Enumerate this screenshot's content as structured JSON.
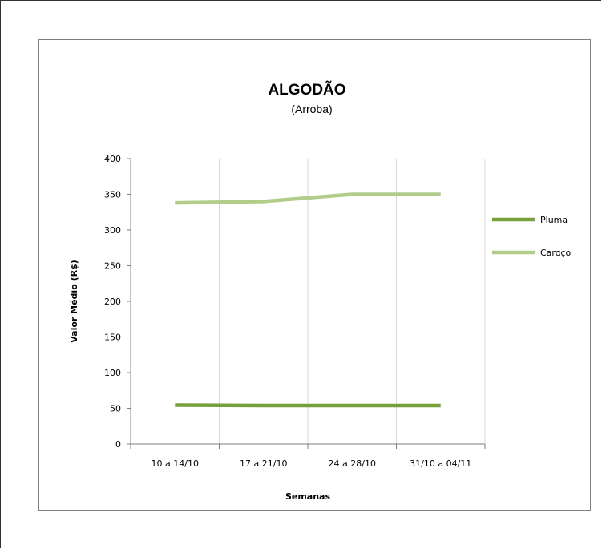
{
  "chart_data": {
    "type": "line",
    "title": "ALGODÃO",
    "subtitle": "(Arroba)",
    "xlabel": "Semanas",
    "ylabel": "Valor Médio (R$)",
    "categories": [
      "10 a 14/10",
      "17 a 21/10",
      "24 a 28/10",
      "31/10 a 04/11"
    ],
    "ylim": [
      0,
      400
    ],
    "yticks": [
      0,
      50,
      100,
      150,
      200,
      250,
      300,
      350,
      400
    ],
    "grid": "vertical",
    "legend_position": "right",
    "series": [
      {
        "name": "Pluma",
        "color": "#77a03a",
        "values": [
          54.5,
          54,
          54,
          54
        ]
      },
      {
        "name": "Caroço",
        "color": "#b2cc8a",
        "values": [
          338,
          340,
          350,
          350
        ]
      }
    ]
  }
}
